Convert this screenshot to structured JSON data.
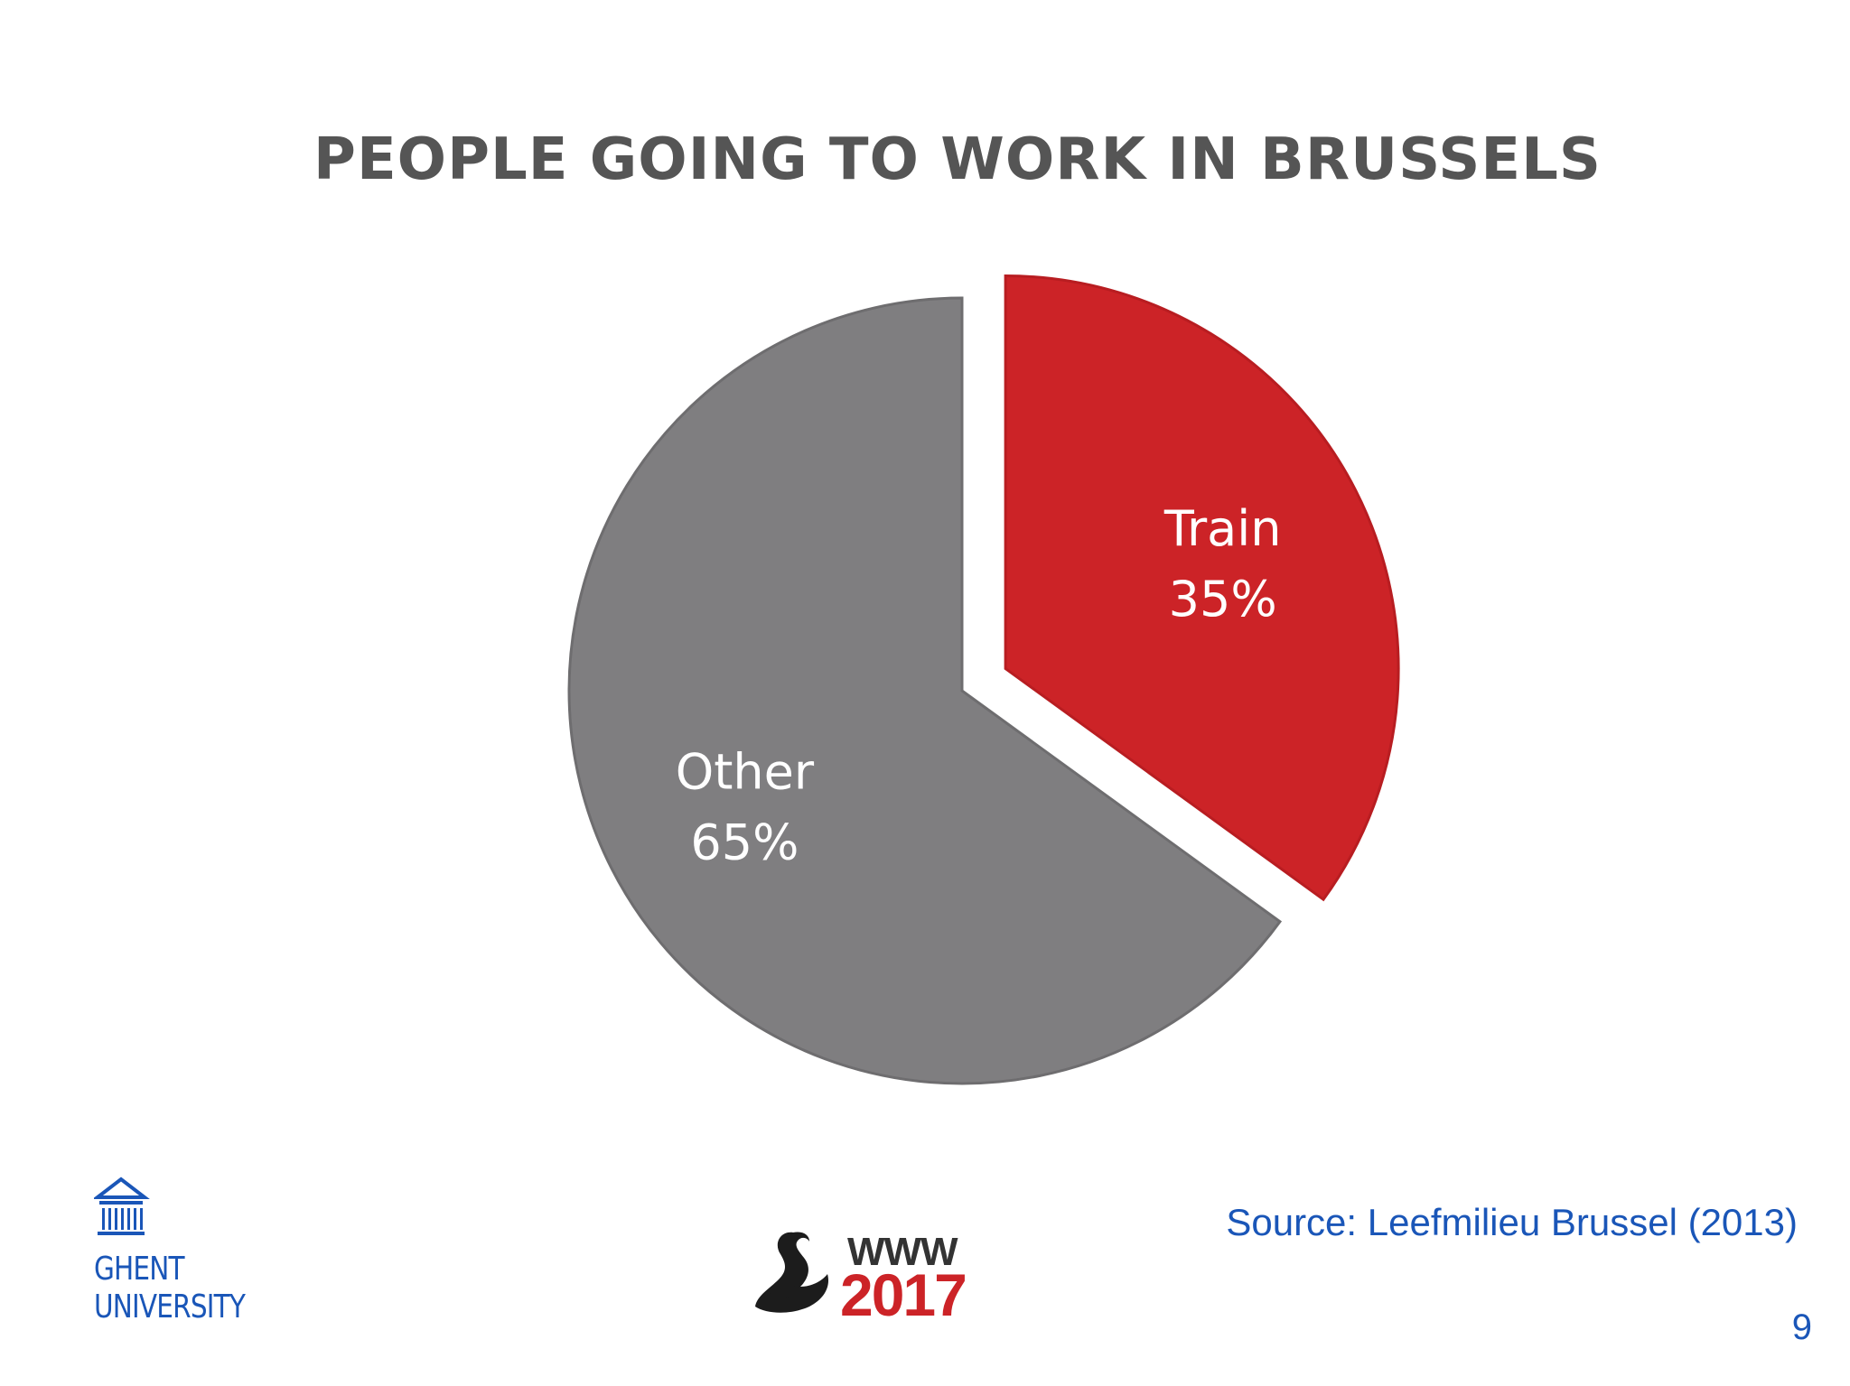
{
  "slide": {
    "page_number": "9",
    "source_note": "Source: Leefmilieu Brussel (2013)",
    "university": {
      "line1": "GHENT",
      "line2": "UNIVERSITY",
      "icon": "building-icon"
    },
    "conference_logo": {
      "line1": "WWW",
      "line2": "2017",
      "icon": "swan-icon"
    }
  },
  "chart_data": {
    "type": "pie",
    "title": "PEOPLE GOING TO WORK IN BRUSSELS",
    "slices": [
      {
        "name": "Train",
        "value": 35,
        "label": "35%",
        "color": "#cc2327",
        "exploded": true
      },
      {
        "name": "Other",
        "value": 65,
        "label": "65%",
        "color": "#7f7e80",
        "exploded": false
      }
    ],
    "legend": "none"
  }
}
